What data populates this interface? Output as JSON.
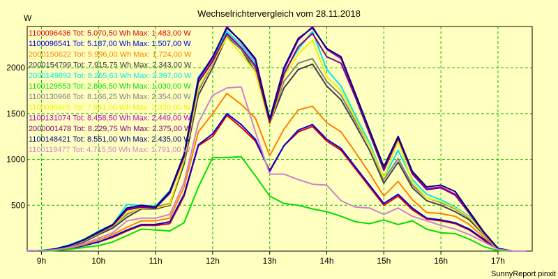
{
  "chart_data": {
    "type": "line",
    "title": "Wechselrichtervergleich vom 28.11.2018",
    "ylabel": "W",
    "footer": "SunnyReport pinxit",
    "ylim": [
      0,
      2450
    ],
    "xlim": [
      8.75,
      17.6
    ],
    "x_ticks": [
      9,
      10,
      11,
      12,
      13,
      14,
      15,
      16,
      17
    ],
    "x_tick_labels": [
      "9h",
      "10h",
      "11h",
      "12h",
      "13h",
      "14h",
      "15h",
      "16h",
      "17h"
    ],
    "y_ticks": [
      500,
      1000,
      1500,
      2000
    ],
    "y_tick_labels": [
      "500",
      "1000",
      "1500",
      "2000"
    ],
    "grid": true,
    "legend_position": "top-left",
    "x": [
      8.75,
      9.0,
      9.25,
      9.5,
      9.75,
      10.0,
      10.25,
      10.5,
      10.75,
      11.0,
      11.25,
      11.5,
      11.75,
      12.0,
      12.25,
      12.5,
      12.75,
      13.0,
      13.25,
      13.5,
      13.75,
      14.0,
      14.25,
      14.5,
      14.75,
      15.0,
      15.25,
      15.5,
      15.75,
      16.0,
      16.25,
      16.5,
      16.75,
      17.0,
      17.25,
      17.5
    ],
    "series": [
      {
        "name": "1100096436 Tot: 5.070,50 Wh Max: 1.483,00 W",
        "color": "#e00000",
        "values": [
          0,
          5,
          12,
          30,
          60,
          100,
          150,
          220,
          280,
          280,
          300,
          600,
          1150,
          1250,
          1480,
          1350,
          1200,
          880,
          1150,
          1300,
          1360,
          1200,
          1100,
          900,
          700,
          500,
          600,
          450,
          350,
          330,
          300,
          230,
          120,
          20,
          0,
          0
        ]
      },
      {
        "name": "1100096541 Tot: 5.187,00 Wh Max: 1.507,00 W",
        "color": "#0000e0",
        "values": [
          0,
          5,
          12,
          30,
          60,
          100,
          160,
          230,
          290,
          290,
          320,
          620,
          1160,
          1280,
          1500,
          1380,
          1220,
          870,
          1150,
          1320,
          1380,
          1220,
          1120,
          920,
          720,
          520,
          620,
          470,
          360,
          340,
          310,
          240,
          130,
          20,
          0,
          0
        ]
      },
      {
        "name": "2000150622 Tot: 5.996,00 Wh Max: 1.724,00 W",
        "color": "#ff8000",
        "values": [
          0,
          5,
          15,
          35,
          70,
          120,
          180,
          260,
          330,
          330,
          360,
          700,
          1300,
          1500,
          1720,
          1600,
          1450,
          1040,
          1330,
          1540,
          1580,
          1400,
          1300,
          1080,
          850,
          600,
          760,
          560,
          420,
          410,
          380,
          290,
          150,
          25,
          0,
          0
        ]
      },
      {
        "name": "2000154799 Tot: 7.915,75 Wh Max: 2.343,00 W",
        "color": "#404040",
        "values": [
          0,
          5,
          20,
          50,
          100,
          180,
          250,
          370,
          460,
          460,
          500,
          950,
          1700,
          2000,
          2340,
          2200,
          1950,
          1390,
          1780,
          1980,
          2040,
          1800,
          1650,
          1380,
          1100,
          740,
          970,
          690,
          550,
          500,
          430,
          340,
          180,
          30,
          0,
          0
        ]
      },
      {
        "name": "2000149892 Tot: 8.265,63 Wh Max: 2.397,00 W",
        "color": "#00e8e8",
        "values": [
          0,
          8,
          25,
          70,
          130,
          220,
          290,
          510,
          500,
          490,
          660,
          1050,
          1900,
          2100,
          2400,
          2250,
          2050,
          1420,
          1950,
          2200,
          2397,
          1980,
          1800,
          1480,
          1180,
          800,
          1100,
          780,
          620,
          560,
          480,
          380,
          200,
          30,
          0,
          0
        ]
      },
      {
        "name": "1100129553 Tot: 2.896,50 Wh Max: 1.030,00 W",
        "color": "#00e000",
        "values": [
          0,
          0,
          5,
          20,
          40,
          60,
          100,
          170,
          240,
          230,
          220,
          310,
          700,
          1020,
          1020,
          1030,
          820,
          600,
          520,
          500,
          460,
          430,
          380,
          320,
          300,
          340,
          290,
          330,
          240,
          200,
          190,
          130,
          50,
          5,
          0,
          0
        ]
      },
      {
        "name": "1100130966 Tot: 8.166,25 Wh Max: 2.354,00 W",
        "color": "#808080",
        "values": [
          0,
          5,
          20,
          55,
          110,
          190,
          270,
          400,
          480,
          480,
          520,
          980,
          1750,
          2050,
          2354,
          2200,
          2000,
          1390,
          1850,
          2050,
          2100,
          1850,
          1700,
          1420,
          1150,
          780,
          1010,
          720,
          580,
          530,
          460,
          360,
          190,
          30,
          0,
          0
        ]
      },
      {
        "name": "1100096605 Tot: 7.941,00 Wh Max: 2.330,00 W",
        "color": "#f0f000",
        "values": [
          0,
          5,
          22,
          60,
          115,
          195,
          275,
          420,
          470,
          470,
          510,
          1000,
          1780,
          2060,
          2330,
          2150,
          1950,
          1380,
          1900,
          2150,
          2300,
          1900,
          1750,
          1450,
          1150,
          800,
          1200,
          750,
          580,
          540,
          470,
          370,
          190,
          30,
          0,
          0
        ]
      },
      {
        "name": "1100131074 Tot: 8.458,50 Wh Max: 2.449,00 W",
        "color": "#c000c0",
        "values": [
          0,
          5,
          25,
          65,
          125,
          210,
          285,
          460,
          490,
          480,
          640,
          1050,
          1870,
          2100,
          2449,
          2280,
          2080,
          1430,
          1980,
          2300,
          2449,
          2200,
          2100,
          1700,
          1300,
          900,
          1250,
          850,
          680,
          700,
          620,
          420,
          210,
          30,
          0,
          0
        ]
      },
      {
        "name": "2000001478 Tot: 8.229,75 Wh Max: 2.375,00 W",
        "color": "#800080",
        "values": [
          0,
          5,
          22,
          60,
          120,
          200,
          280,
          450,
          480,
          470,
          630,
          1030,
          1840,
          2070,
          2375,
          2220,
          2020,
          1400,
          1930,
          2230,
          2375,
          2120,
          2050,
          1680,
          1280,
          880,
          1230,
          840,
          670,
          690,
          610,
          410,
          200,
          30,
          0,
          0
        ]
      },
      {
        "name": "1100148421 Tot: 8.551,00 Wh Max: 2.435,00 W",
        "color": "#000080",
        "values": [
          0,
          5,
          25,
          65,
          125,
          210,
          290,
          470,
          500,
          480,
          650,
          1060,
          1880,
          2120,
          2435,
          2290,
          2100,
          1440,
          2000,
          2320,
          2435,
          2210,
          2120,
          1720,
          1320,
          920,
          1250,
          870,
          700,
          720,
          650,
          430,
          210,
          30,
          0,
          0
        ]
      },
      {
        "name": "1100119477 Tot: 4.715,50 Wh Max: 1.791,00 W",
        "color": "#d080d0",
        "values": [
          0,
          5,
          15,
          40,
          80,
          140,
          200,
          330,
          360,
          360,
          400,
          750,
          1400,
          1700,
          1780,
          1791,
          1300,
          840,
          840,
          780,
          730,
          720,
          550,
          480,
          470,
          400,
          470,
          380,
          330,
          280,
          240,
          180,
          100,
          20,
          0,
          0
        ]
      }
    ]
  }
}
